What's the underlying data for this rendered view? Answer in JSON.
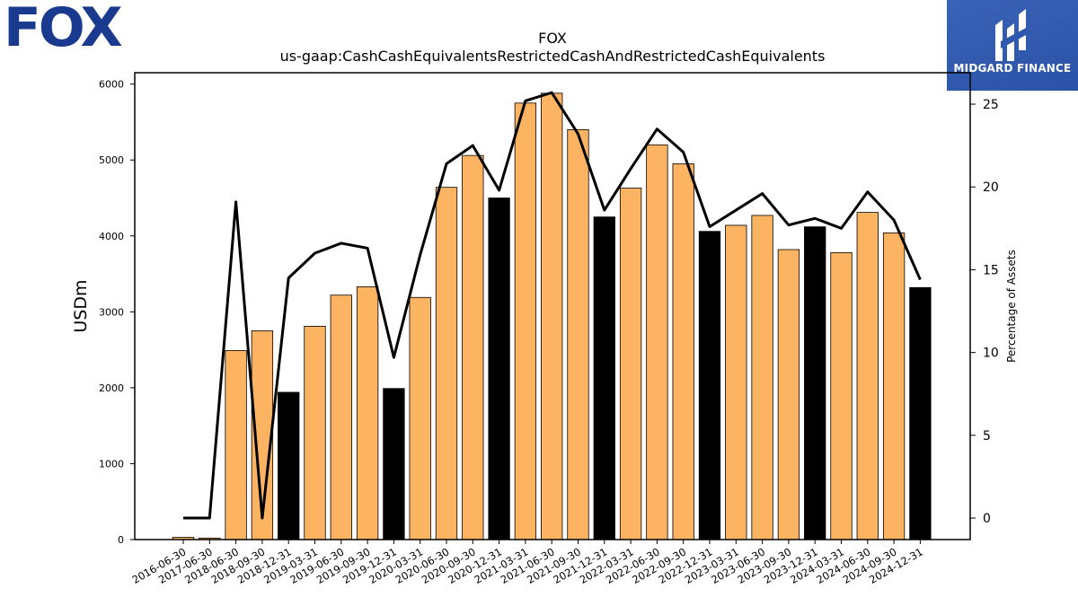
{
  "logos": {
    "left_logo_text": "FOX",
    "right_logo_text": "MIDGARD FINANCE",
    "brand_blue": "#1a3a8f",
    "panel_blue": "#2f58ad"
  },
  "chart_data": {
    "type": "bar",
    "title": "FOX",
    "subtitle": "us-gaap:CashCashEquivalentsRestrictedCashAndRestrictedCashEquivalents",
    "ylabel": "USDm",
    "y2label": "Percentage of Assets",
    "ylim": [
      0,
      6150
    ],
    "y2lim": [
      -1.3,
      26.9
    ],
    "yticks": [
      0,
      1000,
      2000,
      3000,
      4000,
      5000,
      6000
    ],
    "y2ticks": [
      0,
      5,
      10,
      15,
      20,
      25
    ],
    "colors": {
      "regular": "#fdb462",
      "year_end": "#000000",
      "line": "#000000"
    },
    "categories": [
      "2016-06-30",
      "2017-06-30",
      "2018-06-30",
      "2018-09-30",
      "2018-12-31",
      "2019-03-31",
      "2019-06-30",
      "2019-09-30",
      "2019-12-31",
      "2020-03-31",
      "2020-06-30",
      "2020-09-30",
      "2020-12-31",
      "2021-03-31",
      "2021-06-30",
      "2021-09-30",
      "2021-12-31",
      "2022-03-31",
      "2022-06-30",
      "2022-09-30",
      "2022-12-31",
      "2023-03-31",
      "2023-06-30",
      "2023-09-30",
      "2023-12-31",
      "2024-03-31",
      "2024-06-30",
      "2024-09-30",
      "2024-12-31"
    ],
    "values": [
      30,
      20,
      2490,
      2750,
      1940,
      2810,
      3220,
      3330,
      1990,
      3190,
      4640,
      5060,
      4500,
      5750,
      5880,
      5400,
      4250,
      4630,
      5200,
      4950,
      4060,
      4140,
      4270,
      3820,
      4120,
      3780,
      4310,
      4040,
      3320
    ],
    "highlight": [
      false,
      false,
      false,
      false,
      true,
      false,
      false,
      false,
      true,
      false,
      false,
      false,
      true,
      false,
      false,
      false,
      true,
      false,
      false,
      false,
      true,
      false,
      false,
      false,
      true,
      false,
      false,
      false,
      true
    ],
    "series": [
      {
        "name": "Percentage of Assets",
        "axis": "right",
        "values": [
          0,
          0,
          19.1,
          0,
          14.5,
          16.0,
          16.6,
          16.3,
          9.7,
          15.9,
          21.4,
          22.5,
          19.8,
          25.2,
          25.7,
          23.2,
          18.6,
          21.1,
          23.5,
          22.1,
          17.6,
          18.6,
          19.6,
          17.7,
          18.1,
          17.5,
          19.7,
          18.0,
          14.4
        ]
      }
    ]
  }
}
